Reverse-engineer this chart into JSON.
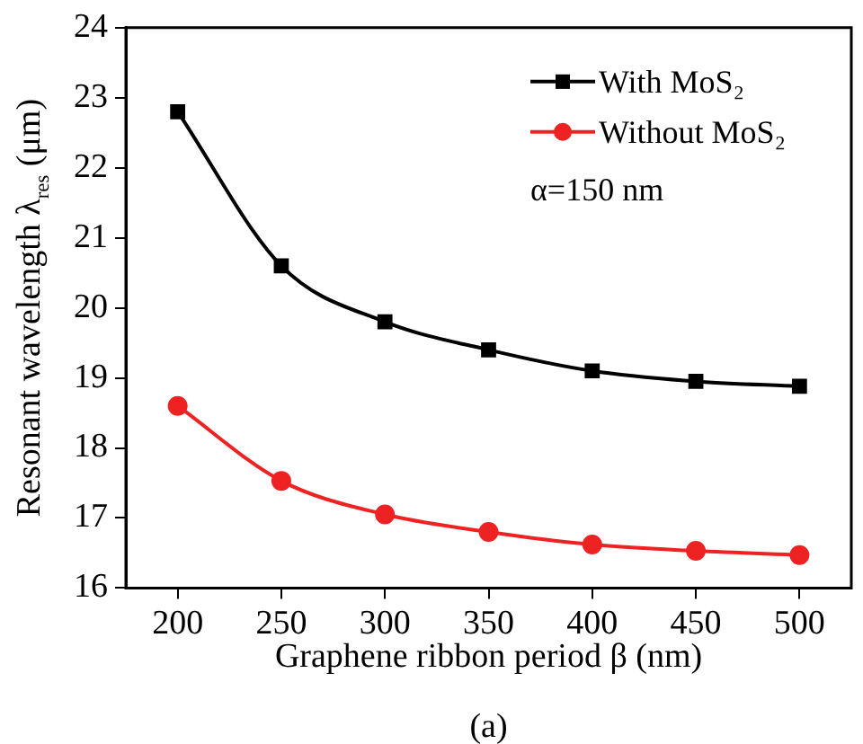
{
  "chart_data": {
    "type": "line",
    "xlabel": "Graphene ribbon period β (nm)",
    "ylabel": "Resonant wavelength λ$_{res}$ (μm)",
    "x": [
      200,
      250,
      300,
      350,
      400,
      450,
      500
    ],
    "series": [
      {
        "name": "With MoS₂",
        "color": "#000000",
        "marker": "square",
        "values": [
          22.8,
          20.6,
          19.8,
          19.4,
          19.1,
          18.95,
          18.88
        ]
      },
      {
        "name": "Without MoS₂",
        "color": "#ee2222",
        "marker": "circle",
        "values": [
          18.6,
          17.53,
          17.05,
          16.8,
          16.62,
          16.53,
          16.47
        ]
      }
    ],
    "xlim": [
      175,
      525
    ],
    "xticks": [
      200,
      250,
      300,
      350,
      400,
      450,
      500
    ],
    "ylim": [
      16,
      24
    ],
    "yticks": [
      16,
      17,
      18,
      19,
      20,
      21,
      22,
      23,
      24
    ],
    "grid": false,
    "legend": "top right",
    "annotations": [
      "α=150 nm",
      "(a)"
    ]
  }
}
